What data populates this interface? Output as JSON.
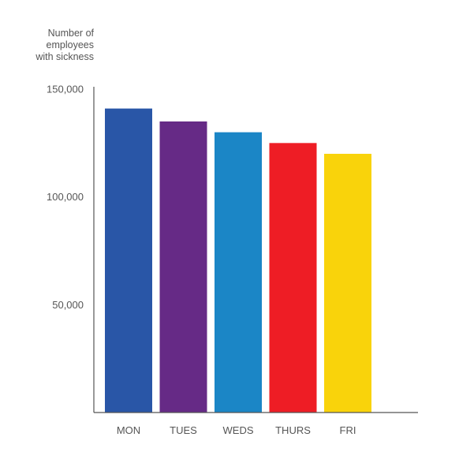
{
  "chart_data": {
    "type": "bar",
    "title": "",
    "ylabel_lines": [
      "Number of",
      "employees",
      "with sickness"
    ],
    "xlabel": "",
    "categories": [
      "MON",
      "TUES",
      "WEDS",
      "THURS",
      "FRI"
    ],
    "values": [
      141000,
      135000,
      130000,
      125000,
      120000
    ],
    "ylim": [
      0,
      150000
    ],
    "yticks": [
      {
        "value": 50000,
        "label": "50,000"
      },
      {
        "value": 100000,
        "label": "100,000"
      },
      {
        "value": 150000,
        "label": "150,000"
      }
    ],
    "colors": [
      "#2956A7",
      "#662A86",
      "#1B86C6",
      "#EE1D25",
      "#F9D30B"
    ],
    "grid": false,
    "legend": "none"
  }
}
